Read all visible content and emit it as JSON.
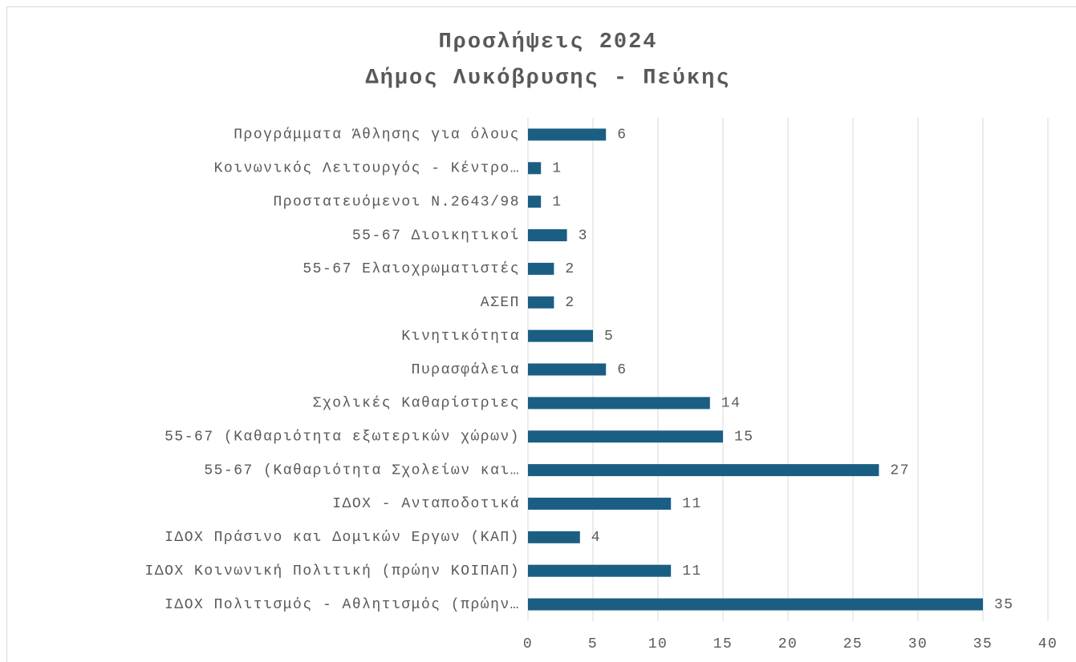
{
  "chart_data": {
    "type": "barh",
    "title": "Προσλήψεις 2024",
    "subtitle": "Δήμος Λυκόβρυσης - Πεύκης",
    "categories": [
      "Προγράμματα Άθλησης για όλους",
      "Κοινωνικός Λειτουργός - Κέντρο…",
      "Προστατευόμενοι Ν.2643/98",
      "55-67 Διοικητικοί",
      "55-67 Ελαιοχρωματιστές",
      "ΑΣΕΠ",
      "Κινητικότητα",
      "Πυρασφάλεια",
      "Σχολικές Καθαρίστριες",
      "55-67 (Καθαριότητα εξωτερικών χώρων)",
      "55-67 (Καθαριότητα Σχολείων και…",
      "ΙΔΟΧ - Ανταποδοτικά",
      "ΙΔΟΧ Πράσινο και Δομικών Εργων (ΚΑΠ)",
      "ΙΔΟΧ Κοινωνική Πολιτική (πρώην ΚΟΙΠΑΠ)",
      "ΙΔΟΧ Πολιτισμός - Αθλητισμός (πρώην…"
    ],
    "values": [
      6,
      1,
      1,
      3,
      2,
      2,
      5,
      6,
      14,
      15,
      27,
      11,
      4,
      11,
      35
    ],
    "color": "#1b5e84",
    "xlim": [
      0,
      40
    ],
    "xticks": [
      0,
      5,
      10,
      15,
      20,
      25,
      30,
      35,
      40
    ],
    "grid": true
  }
}
